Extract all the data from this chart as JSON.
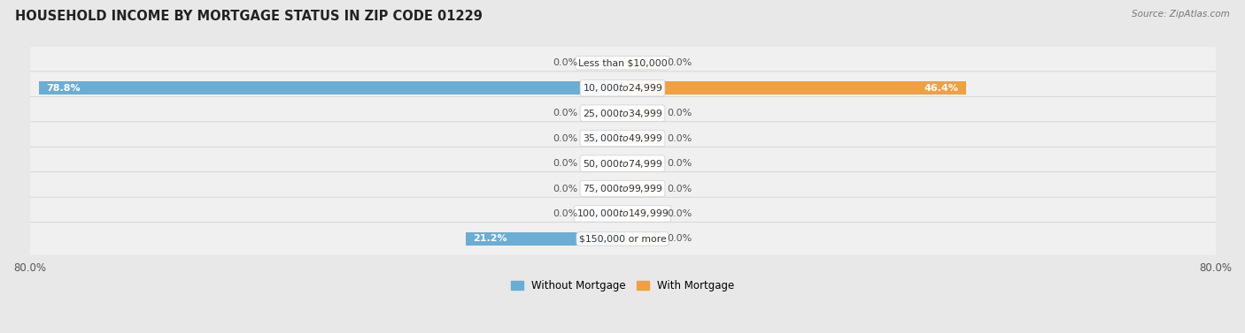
{
  "title": "HOUSEHOLD INCOME BY MORTGAGE STATUS IN ZIP CODE 01229",
  "source": "Source: ZipAtlas.com",
  "categories": [
    "Less than $10,000",
    "$10,000 to $24,999",
    "$25,000 to $34,999",
    "$35,000 to $49,999",
    "$50,000 to $74,999",
    "$75,000 to $99,999",
    "$100,000 to $149,999",
    "$150,000 or more"
  ],
  "without_mortgage": [
    0.0,
    78.8,
    0.0,
    0.0,
    0.0,
    0.0,
    0.0,
    21.2
  ],
  "with_mortgage": [
    0.0,
    46.4,
    0.0,
    0.0,
    0.0,
    0.0,
    0.0,
    0.0
  ],
  "color_without": "#6aadd5",
  "color_without_stub": "#a8cce0",
  "color_with": "#f0a040",
  "color_with_stub": "#f5cfa0",
  "xlim": 80.0,
  "stub_size": 5.0,
  "legend_without": "Without Mortgage",
  "legend_with": "With Mortgage",
  "bg_color": "#e8e8e8",
  "row_bg": "#f0f0f0",
  "row_border": "#cccccc",
  "title_fontsize": 10.5,
  "source_fontsize": 7.5,
  "tick_fontsize": 8.5,
  "label_fontsize": 7.8,
  "bar_label_fontsize": 8.0
}
